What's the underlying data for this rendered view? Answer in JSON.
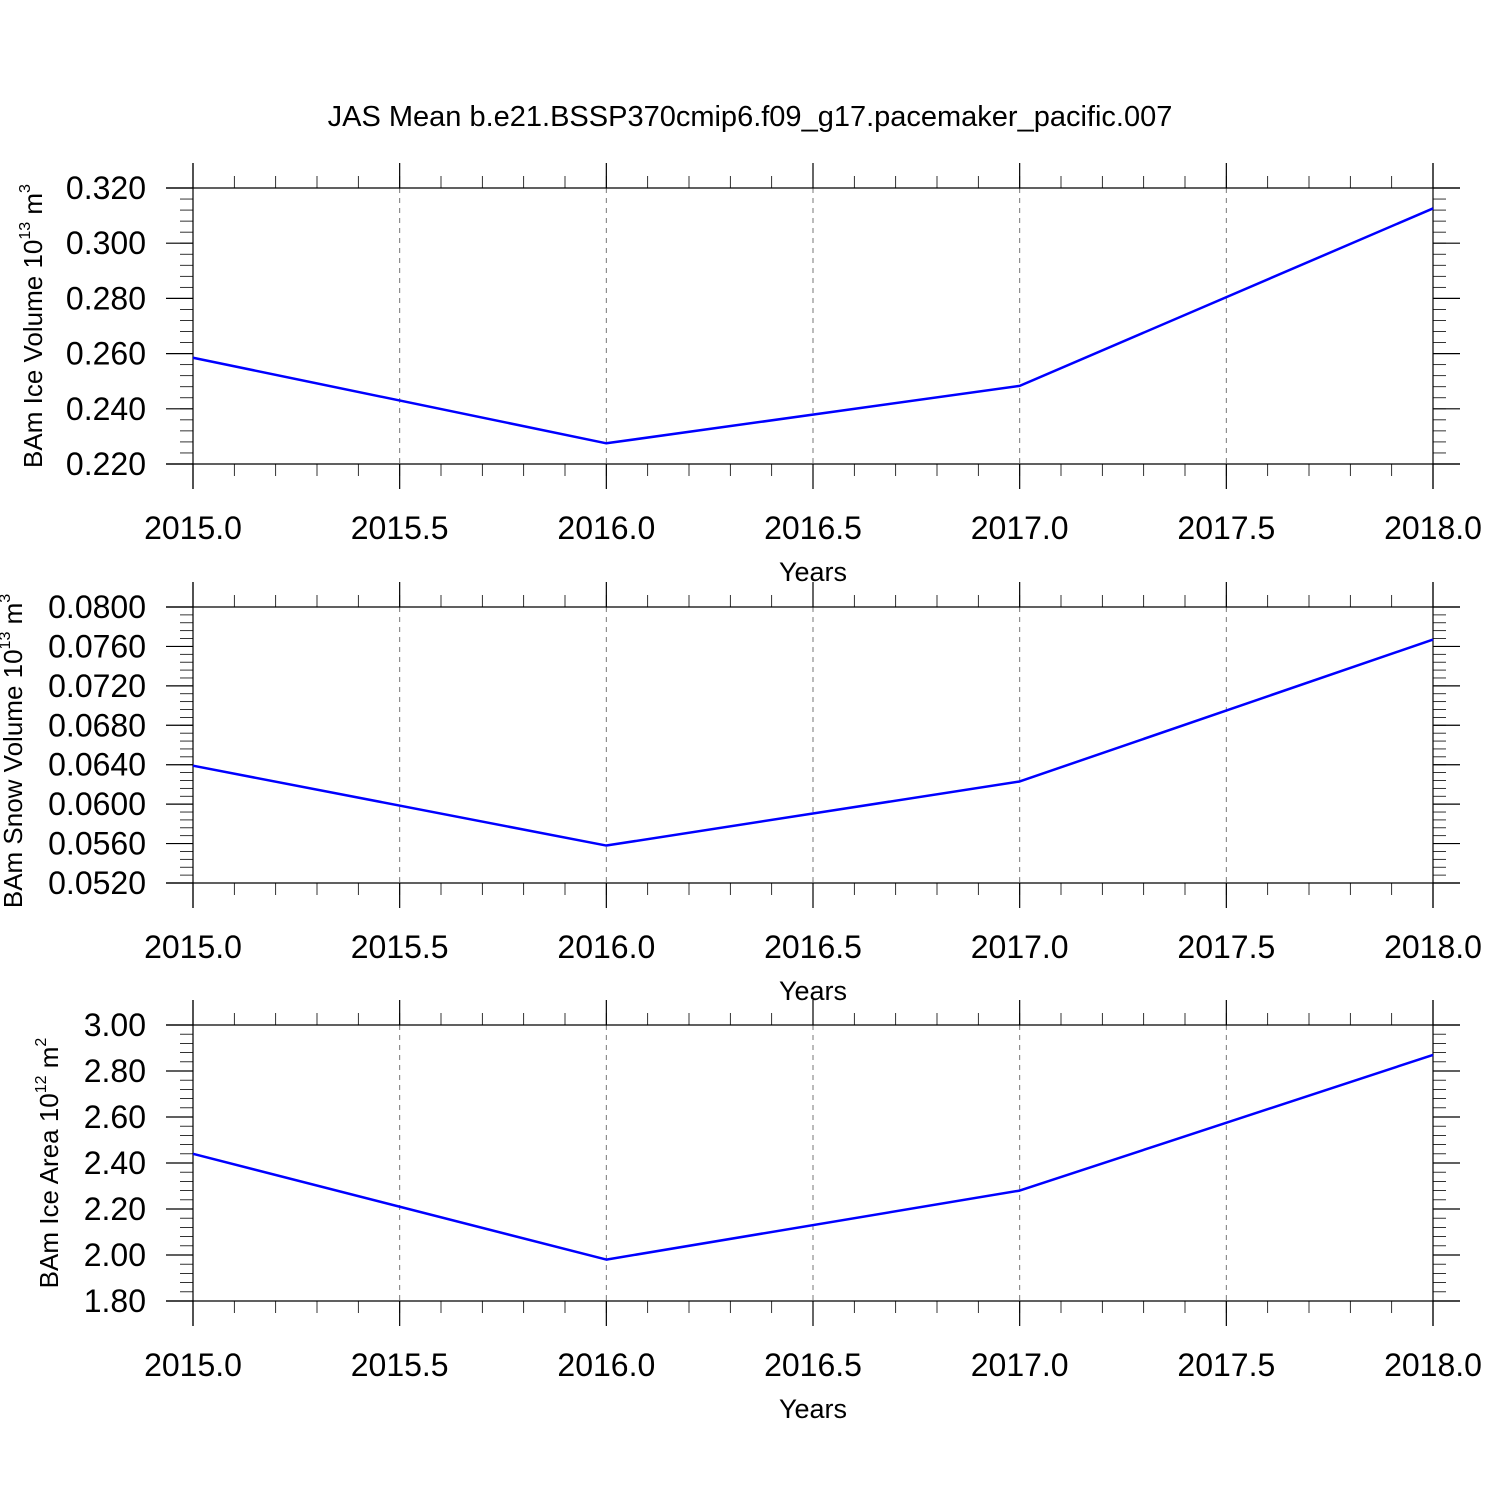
{
  "figure": {
    "title": "JAS Mean b.e21.BSSP370cmip6.f09_g17.pacemaker_pacific.007"
  },
  "chart_data": [
    {
      "type": "line",
      "xlabel": "Years",
      "ylabel": {
        "base": "BAm Ice Volume 10",
        "exp": "13",
        "unit": " m",
        "unit_exp": "3"
      },
      "xlim": [
        2015.0,
        2018.0
      ],
      "ylim": [
        0.22,
        0.32
      ],
      "xticks": [
        2015.0,
        2015.5,
        2016.0,
        2016.5,
        2017.0,
        2017.5,
        2018.0
      ],
      "xtick_labels": [
        "2015.0",
        "2015.5",
        "2016.0",
        "2016.5",
        "2017.0",
        "2017.5",
        "2018.0"
      ],
      "yticks": [
        0.22,
        0.24,
        0.26,
        0.28,
        0.3,
        0.32
      ],
      "ytick_labels": [
        "0.220",
        "0.240",
        "0.260",
        "0.280",
        "0.300",
        "0.320"
      ],
      "grid": "vertical dashed",
      "series": [
        {
          "x": [
            2015,
            2016,
            2017,
            2018
          ],
          "values": [
            0.2585,
            0.2275,
            0.2483,
            0.3126
          ],
          "color": "#0000ff"
        }
      ]
    },
    {
      "type": "line",
      "xlabel": "Years",
      "ylabel": {
        "base": "BAm Snow Volume 10",
        "exp": "13",
        "unit": " m",
        "unit_exp": "3"
      },
      "xlim": [
        2015.0,
        2018.0
      ],
      "ylim": [
        0.052,
        0.08
      ],
      "xticks": [
        2015.0,
        2015.5,
        2016.0,
        2016.5,
        2017.0,
        2017.5,
        2018.0
      ],
      "xtick_labels": [
        "2015.0",
        "2015.5",
        "2016.0",
        "2016.5",
        "2017.0",
        "2017.5",
        "2018.0"
      ],
      "yticks": [
        0.052,
        0.056,
        0.06,
        0.064,
        0.068,
        0.072,
        0.076,
        0.08
      ],
      "ytick_labels": [
        "0.0520",
        "0.0560",
        "0.0600",
        "0.0640",
        "0.0680",
        "0.0720",
        "0.0760",
        "0.0800"
      ],
      "grid": "vertical dashed",
      "series": [
        {
          "x": [
            2015,
            2016,
            2017,
            2018
          ],
          "values": [
            0.0639,
            0.0558,
            0.0623,
            0.0767
          ],
          "color": "#0000ff"
        }
      ]
    },
    {
      "type": "line",
      "xlabel": "Years",
      "ylabel": {
        "base": "BAm Ice Area 10",
        "exp": "12",
        "unit": " m",
        "unit_exp": "2"
      },
      "xlim": [
        2015.0,
        2018.0
      ],
      "ylim": [
        1.8,
        3.0
      ],
      "xticks": [
        2015.0,
        2015.5,
        2016.0,
        2016.5,
        2017.0,
        2017.5,
        2018.0
      ],
      "xtick_labels": [
        "2015.0",
        "2015.5",
        "2016.0",
        "2016.5",
        "2017.0",
        "2017.5",
        "2018.0"
      ],
      "yticks": [
        1.8,
        2.0,
        2.2,
        2.4,
        2.6,
        2.8,
        3.0
      ],
      "ytick_labels": [
        "1.80",
        "2.00",
        "2.20",
        "2.40",
        "2.60",
        "2.80",
        "3.00"
      ],
      "grid": "vertical dashed",
      "series": [
        {
          "x": [
            2015,
            2016,
            2017,
            2018
          ],
          "values": [
            2.44,
            1.98,
            2.28,
            2.87
          ],
          "color": "#0000ff"
        }
      ]
    }
  ]
}
